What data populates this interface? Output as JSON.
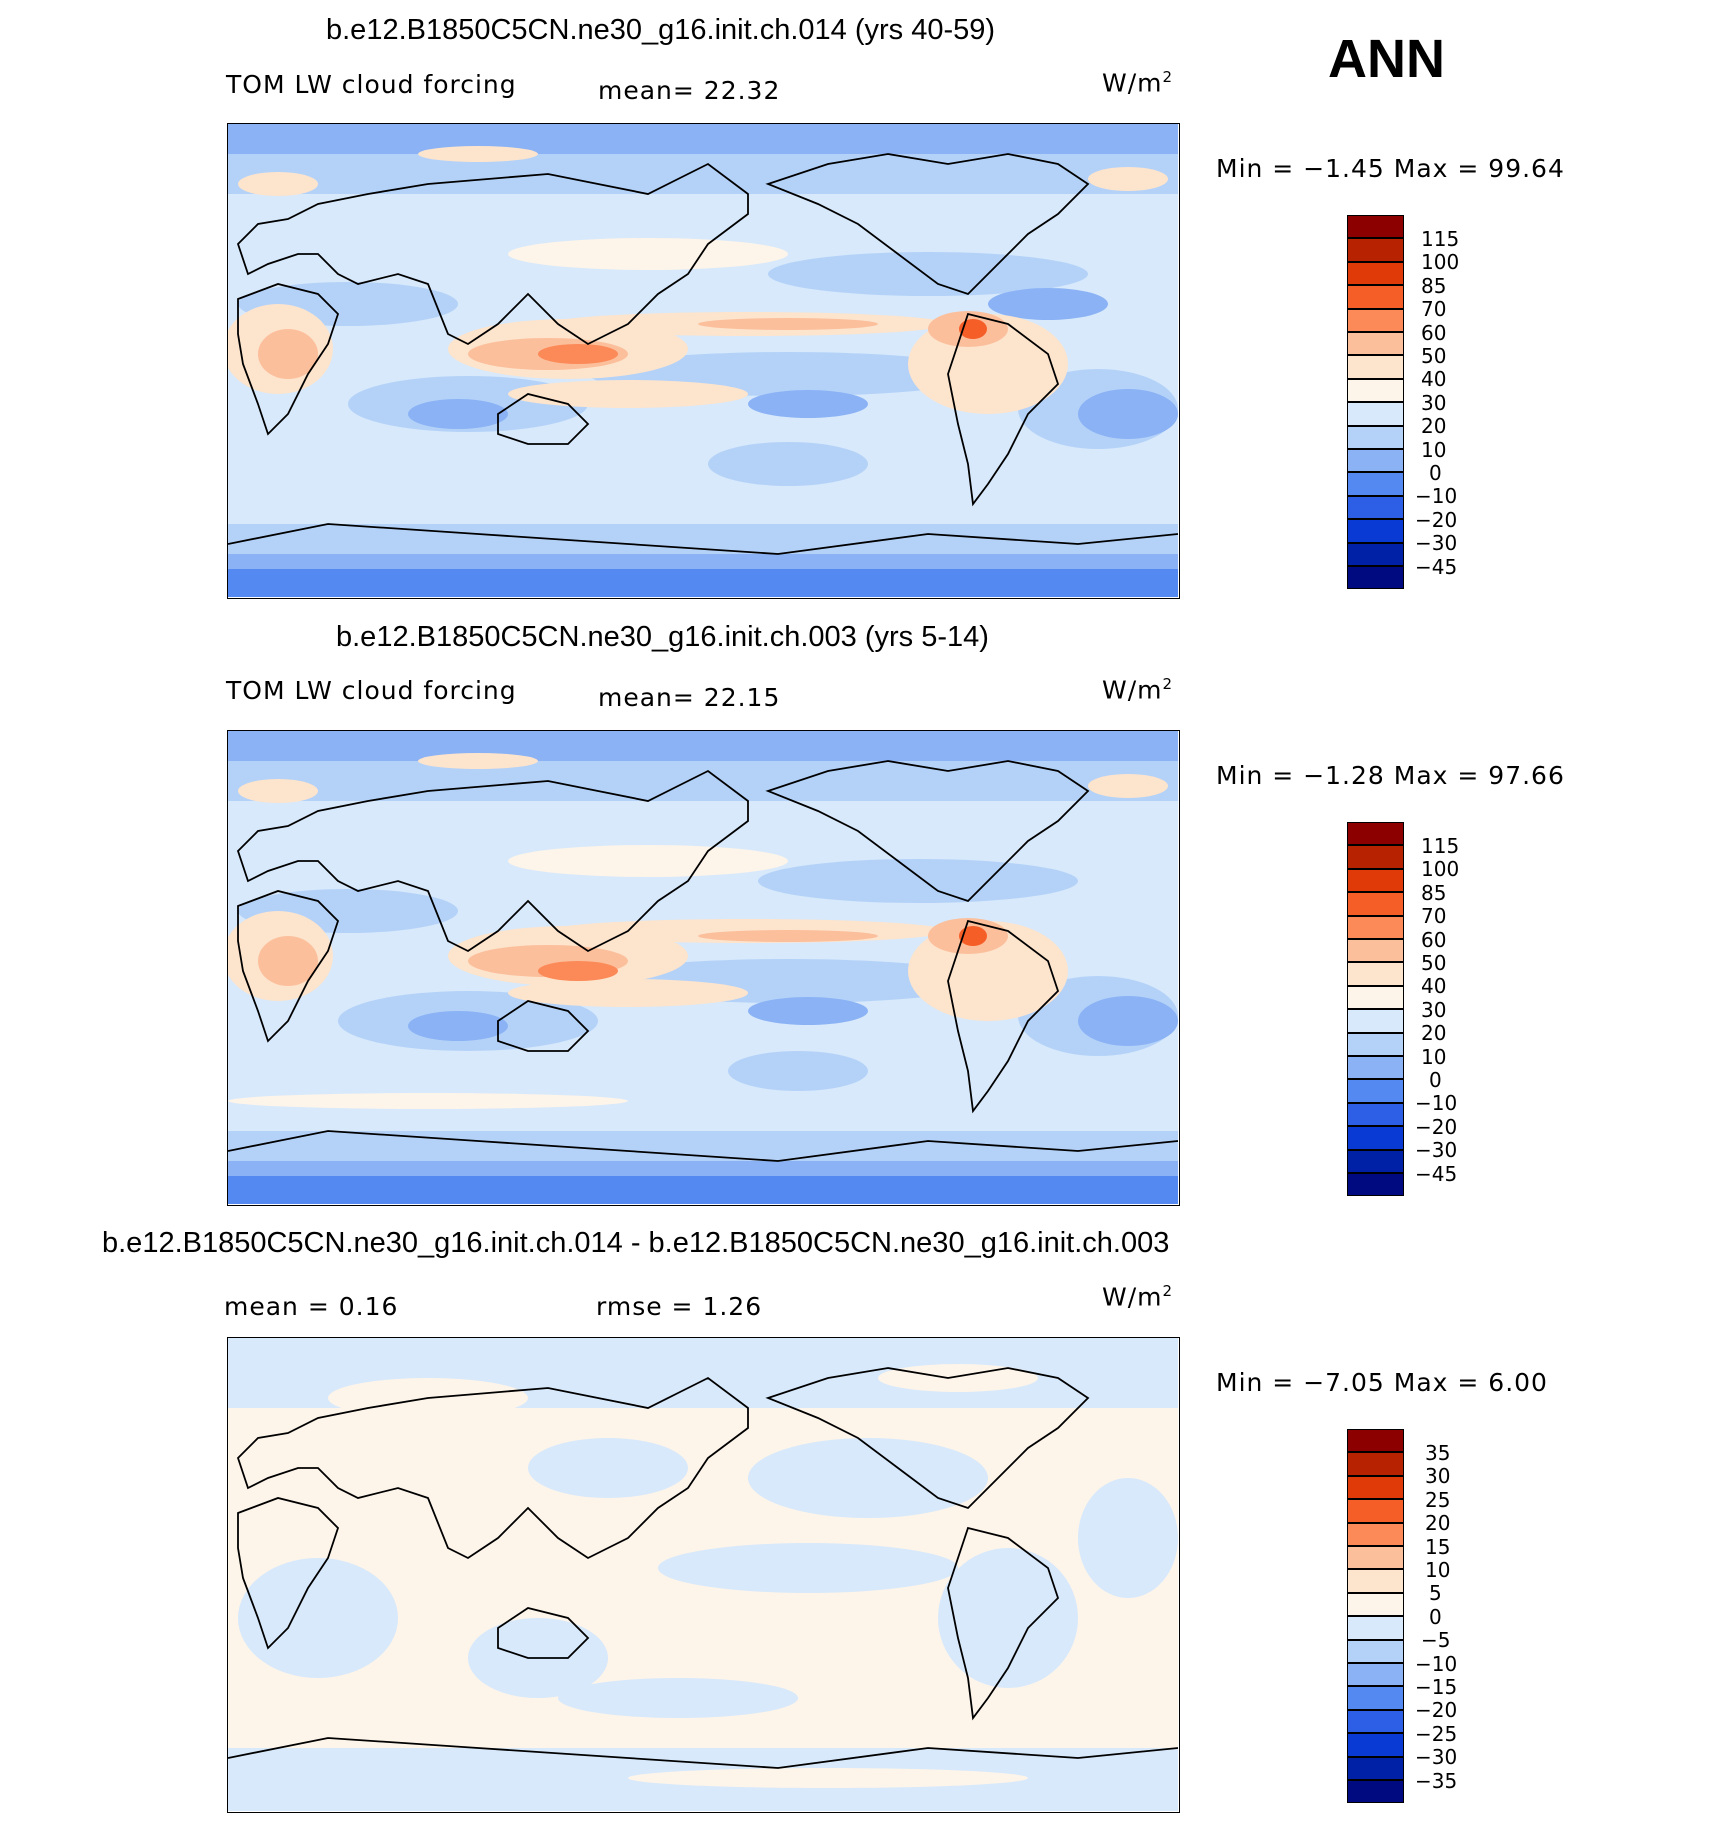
{
  "season": "ANN",
  "panels": [
    {
      "title": "b.e12.B1850C5CN.ne30_g16.init.ch.014 (yrs 40-59)",
      "left_label": "TOM LW cloud forcing",
      "center_label": "mean=  22.32",
      "units": "W/m",
      "units_sup": "2",
      "stats": "Min =  −1.45 Max =   99.64",
      "colorbar_labels": [
        "115",
        "100",
        "85",
        "70",
        "60",
        "50",
        "40",
        "30",
        "20",
        "10",
        "0",
        "−10",
        "−20",
        "−30",
        "−45"
      ],
      "colorbar_colors": [
        "#8c0000",
        "#b72300",
        "#e03a08",
        "#f65e28",
        "#fc8a58",
        "#fcbf9c",
        "#fde4cd",
        "#fdf4ea",
        "#d7e9fb",
        "#b4d2f8",
        "#8ab2f5",
        "#5389f0",
        "#2c5fe6",
        "#0a3ad4",
        "#0020a6",
        "#000a80"
      ]
    },
    {
      "title": "b.e12.B1850C5CN.ne30_g16.init.ch.003 (yrs 5-14)",
      "left_label": "TOM LW cloud forcing",
      "center_label": "mean=  22.15",
      "units": "W/m",
      "units_sup": "2",
      "stats": "Min =  −1.28 Max =   97.66",
      "colorbar_labels": [
        "115",
        "100",
        "85",
        "70",
        "60",
        "50",
        "40",
        "30",
        "20",
        "10",
        "0",
        "−10",
        "−20",
        "−30",
        "−45"
      ],
      "colorbar_colors": [
        "#8c0000",
        "#b72300",
        "#e03a08",
        "#f65e28",
        "#fc8a58",
        "#fcbf9c",
        "#fde4cd",
        "#fdf4ea",
        "#d7e9fb",
        "#b4d2f8",
        "#8ab2f5",
        "#5389f0",
        "#2c5fe6",
        "#0a3ad4",
        "#0020a6",
        "#000a80"
      ]
    },
    {
      "title": "b.e12.B1850C5CN.ne30_g16.init.ch.014 - b.e12.B1850C5CN.ne30_g16.init.ch.003",
      "left_label": "mean =    0.16",
      "center_label": "rmse =    1.26",
      "units": "W/m",
      "units_sup": "2",
      "stats": "Min =  −7.05 Max =    6.00",
      "colorbar_labels": [
        "35",
        "30",
        "25",
        "20",
        "15",
        "10",
        "5",
        "0",
        "−5",
        "−10",
        "−15",
        "−20",
        "−25",
        "−30",
        "−35"
      ],
      "colorbar_colors": [
        "#8c0000",
        "#b72300",
        "#e03a08",
        "#f65e28",
        "#fc8a58",
        "#fcbf9c",
        "#fde4cd",
        "#fdf4ea",
        "#d7e9fb",
        "#b4d2f8",
        "#8ab2f5",
        "#5389f0",
        "#2c5fe6",
        "#0a3ad4",
        "#0020a6",
        "#000a80"
      ]
    }
  ]
}
